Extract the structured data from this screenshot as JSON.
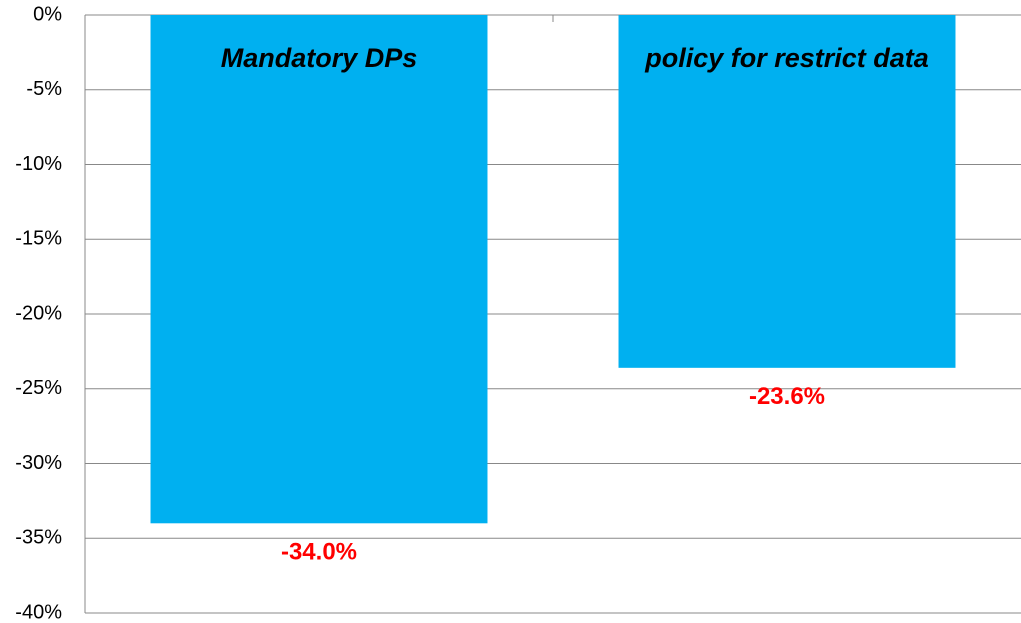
{
  "chart_data": {
    "type": "bar",
    "categories": [
      "Mandatory DPs",
      "policy for restrict data"
    ],
    "values": [
      -34.0,
      -23.6
    ],
    "value_labels": [
      "-34.0%",
      "-23.6%"
    ],
    "color": "#00b0f0",
    "value_label_color": "#ff0000",
    "ylim": [
      -40,
      0
    ],
    "yticks": [
      {
        "value": 0,
        "label": "0%"
      },
      {
        "value": -5,
        "label": "-5%"
      },
      {
        "value": -10,
        "label": "-10%"
      },
      {
        "value": -15,
        "label": "-15%"
      },
      {
        "value": -20,
        "label": "-20%"
      },
      {
        "value": -25,
        "label": "-25%"
      },
      {
        "value": -30,
        "label": "-30%"
      },
      {
        "value": -35,
        "label": "-35%"
      },
      {
        "value": -40,
        "label": "-40%"
      }
    ],
    "grid": true
  }
}
